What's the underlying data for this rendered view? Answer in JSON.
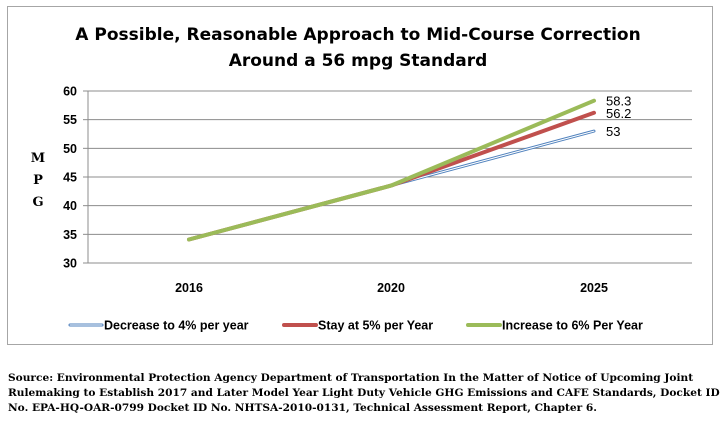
{
  "chart_data": {
    "type": "line",
    "title_lines": [
      "A Possible, Reasonable Approach to Mid-Course Correction",
      "Around a 56 mpg Standard"
    ],
    "ylabel": "MPG",
    "ylim": [
      30,
      60
    ],
    "yticks": [
      "30",
      "35",
      "40",
      "45",
      "50",
      "55",
      "60"
    ],
    "categories": [
      "2016",
      "2020",
      "2025"
    ],
    "grid": true,
    "legend_position": "bottom",
    "series": [
      {
        "name": "Decrease to 4% per year",
        "color": "#4f81bd",
        "style": "outline",
        "values": [
          34.1,
          43.5,
          53
        ],
        "end_label": "53"
      },
      {
        "name": "Stay at 5% per Year",
        "color": "#c0504d",
        "style": "solid",
        "values": [
          34.1,
          43.5,
          56.2
        ],
        "end_label": "56.2"
      },
      {
        "name": "Increase to 6% Per Year",
        "color": "#9bbb59",
        "style": "solid",
        "values": [
          34.1,
          43.5,
          58.3
        ],
        "end_label": "58.3"
      }
    ]
  },
  "source": "Source: Environmental Protection Agency Department of Transportation In the Matter of Notice of Upcoming Joint Rulemaking to Establish 2017 and Later Model Year Light Duty Vehicle GHG Emissions and CAFE Standards, Docket ID No. EPA-HQ-OAR-0799 Docket ID No. NHTSA-2010-0131, Technical Assessment Report, Chapter 6."
}
